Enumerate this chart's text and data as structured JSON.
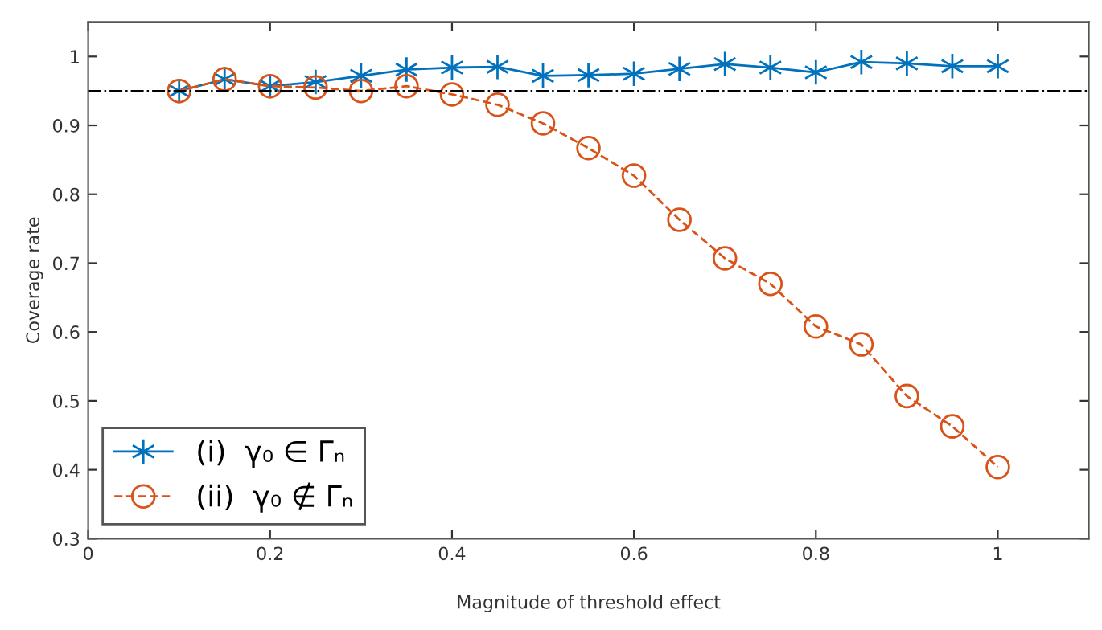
{
  "chart_data": {
    "type": "line",
    "xlabel": "Magnitude of threshold effect",
    "ylabel": "Coverage rate",
    "x": [
      0.1,
      0.15,
      0.2,
      0.25,
      0.3,
      0.35,
      0.4,
      0.45,
      0.5,
      0.55,
      0.6,
      0.65,
      0.7,
      0.75,
      0.8,
      0.85,
      0.9,
      0.95,
      1.0
    ],
    "series": [
      {
        "name": "(i)  γ₀ ∈ Γₙ",
        "color": "#0072bd",
        "marker": "cross",
        "line_style": "solid",
        "values": [
          0.95,
          0.967,
          0.957,
          0.963,
          0.972,
          0.981,
          0.984,
          0.985,
          0.972,
          0.973,
          0.975,
          0.982,
          0.989,
          0.984,
          0.977,
          0.992,
          0.99,
          0.986,
          0.986
        ]
      },
      {
        "name": "(ii)  γ₀ ∉ Γₙ",
        "color": "#d95319",
        "marker": "circle",
        "line_style": "dashed",
        "values": [
          0.95,
          0.967,
          0.957,
          0.955,
          0.95,
          0.957,
          0.945,
          0.93,
          0.903,
          0.867,
          0.827,
          0.763,
          0.707,
          0.67,
          0.608,
          0.582,
          0.507,
          0.463,
          0.404
        ]
      }
    ],
    "ref_lines": [
      {
        "axis": "y",
        "value": 0.95,
        "color": "#000000",
        "line_style": "dashdot"
      }
    ],
    "xlim": [
      0,
      1.1
    ],
    "xticks": [
      0,
      0.2,
      0.4,
      0.6,
      0.8,
      1
    ],
    "ylim": [
      0.3,
      1.05
    ],
    "yticks": [
      0.3,
      0.4,
      0.5,
      0.6,
      0.7,
      0.8,
      0.9,
      1
    ],
    "grid": false,
    "legend": "bottom left"
  }
}
